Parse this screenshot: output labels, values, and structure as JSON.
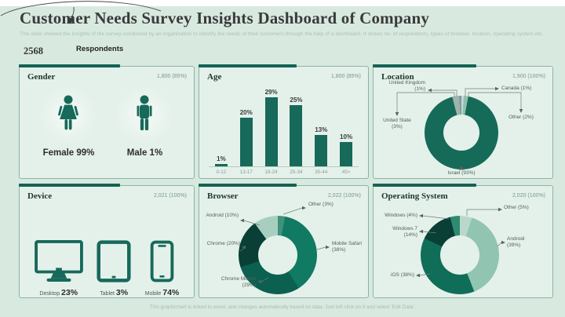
{
  "title": "Customer Needs Survey Insights Dashboard of Company",
  "subtitle": "This slide showed the insights of the survey conducted by an organization to identify the needs of their customers through the help of a dashboard. It shows no. of respondents, types of browser, location, operating system etc.",
  "respondents": {
    "count": "2568",
    "label": "Respondents"
  },
  "footer": "This graph/chart is linked to excel, and changes automatically based on data. Just left click on it and select 'Edit Data'.",
  "colors": {
    "accent": "#156353",
    "teal": "#17695a",
    "slide_bg": "#d8e9e0",
    "panel_bg": "#e4f1ea"
  },
  "panels": {
    "gender": {
      "title": "Gender",
      "value": "1,800 (85%)",
      "items": [
        {
          "label": "Female 99%"
        },
        {
          "label": "Male 1%"
        }
      ]
    },
    "age": {
      "title": "Age",
      "value": "1,800 (85%)"
    },
    "location": {
      "title": "Location",
      "value": "1,900 (100%)"
    },
    "device": {
      "title": "Device",
      "value": "2,021 (100%)",
      "items": [
        {
          "name": "Desktop",
          "pct": "23%"
        },
        {
          "name": "Tablet",
          "pct": "3%"
        },
        {
          "name": "Mobile",
          "pct": "74%"
        }
      ]
    },
    "browser": {
      "title": "Browser",
      "value": "2,022 (100%)"
    },
    "os": {
      "title": "Operating System",
      "value": "2,020 (100%)"
    }
  },
  "chart_data": [
    {
      "id": "age",
      "type": "bar",
      "title": "Age",
      "categories": [
        "0-12",
        "13-17",
        "18-24",
        "25-34",
        "35-44",
        "45>"
      ],
      "values": [
        1,
        20,
        29,
        25,
        13,
        10
      ],
      "unit": "%",
      "max_value": 29,
      "ylim": [
        0,
        29
      ],
      "grid": false,
      "bar_color": "#17695a"
    },
    {
      "id": "location",
      "type": "donut",
      "title": "Location",
      "segments": [
        {
          "name": "Canada",
          "value": 1,
          "label": "Canada (1%)",
          "color": "#c4dbd1"
        },
        {
          "name": "Other",
          "value": 2,
          "label": "Other (2%)",
          "color": "#8ec0ae"
        },
        {
          "name": "Israel",
          "value": 93,
          "label": "Israel (93%)",
          "color": "#156b58"
        },
        {
          "name": "United State",
          "value": 3,
          "label": "United State (3%)",
          "color": "#9fb3ac"
        },
        {
          "name": "United Kingdom",
          "value": 1,
          "label": "United Kingdom (1%)",
          "color": "#7e98a4"
        }
      ]
    },
    {
      "id": "browser",
      "type": "donut",
      "title": "Browser",
      "segments": [
        {
          "name": "Other",
          "value": 3,
          "label": "Other (3%)",
          "color": "#41917a"
        },
        {
          "name": "Mobile Safari",
          "value": 38,
          "label": "Mobile Safari (38%)",
          "color": "#107a62"
        },
        {
          "name": "Chrome Mobile",
          "value": 29,
          "label": "Chrome Mobile (29%)",
          "color": "#0c6050"
        },
        {
          "name": "Chrome",
          "value": 20,
          "label": "Chrome (20%)",
          "color": "#093f34"
        },
        {
          "name": "Android",
          "value": 10,
          "label": "Android (10%)",
          "color": "#a6cfc0"
        }
      ]
    },
    {
      "id": "os",
      "type": "donut",
      "title": "Operating System",
      "segments": [
        {
          "name": "Other",
          "value": 5,
          "label": "Other (5%)",
          "color": "#b9d8cb"
        },
        {
          "name": "Android",
          "value": 39,
          "label": "Android (39%)",
          "color": "#92c4b2"
        },
        {
          "name": "iOS",
          "value": 38,
          "label": "iOS (38%)",
          "color": "#106e58"
        },
        {
          "name": "Windows 7",
          "value": 14,
          "label": "Windows 7 (14%)",
          "color": "#093f34"
        },
        {
          "name": "Windows",
          "value": 4,
          "label": "Windows (4%)",
          "color": "#2f8a71"
        }
      ]
    }
  ]
}
